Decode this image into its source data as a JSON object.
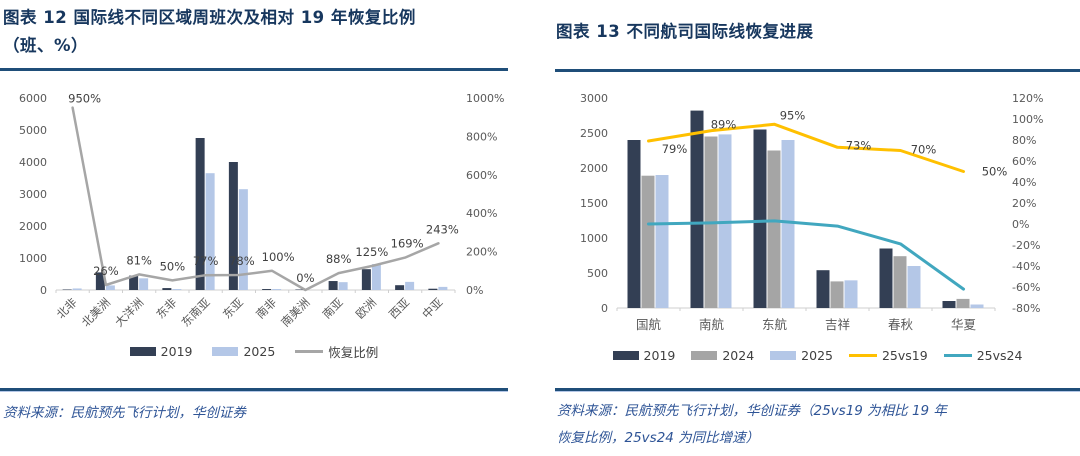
{
  "figure12": {
    "title_line1": "图表 12  国际线不同区域周班次及相对 19 年恢复比例",
    "title_line2": "（班、%）",
    "source": "资料来源：民航预先飞行计划，华创证券"
  },
  "figure13": {
    "title": "图表 13 不同航司国际线恢复进展",
    "source_line1": "资料来源：民航预先飞行计划，华创证券（25vs19 为相比 19 年",
    "source_line2": "恢复比例，25vs24 为同比增速）"
  },
  "colors": {
    "title_navy": "#17375E",
    "rule_navy": "#1F4E79",
    "source_blue": "#2E5496",
    "bar_2019": "#333F54",
    "bar_2024": "#A5A5A5",
    "bar_2025": "#B4C7E7",
    "line_gray": "#A6A6A6",
    "line_yellow": "#FFC000",
    "line_teal": "#41A7BF",
    "axis_text": "#595959",
    "label_text": "#404040"
  },
  "chart_data": [
    {
      "type": "bar",
      "title": "国际线不同区域周班次及相对 19 年恢复比例（班、%）",
      "categories": [
        "北非",
        "北美洲",
        "大洋洲",
        "东非",
        "东南亚",
        "东亚",
        "南非",
        "南美洲",
        "南亚",
        "欧洲",
        "西亚",
        "中亚"
      ],
      "series": [
        {
          "name": "2019",
          "type": "bar",
          "axis": "left",
          "color": "#333F54",
          "values": [
            5,
            550,
            450,
            60,
            4750,
            4000,
            30,
            8,
            280,
            650,
            150,
            40
          ]
        },
        {
          "name": "2025",
          "type": "bar",
          "axis": "left",
          "color": "#B4C7E7",
          "values": [
            48,
            143,
            365,
            30,
            3650,
            3150,
            30,
            0,
            245,
            810,
            254,
            97
          ]
        },
        {
          "name": "恢复比例",
          "type": "line",
          "axis": "right",
          "color": "#A6A6A6",
          "values": [
            950,
            26,
            81,
            50,
            77,
            78,
            100,
            0,
            88,
            125,
            169,
            243
          ],
          "labels": [
            "950%",
            "26%",
            "81%",
            "50%",
            "77%",
            "78%",
            "100%",
            "0%",
            "88%",
            "125%",
            "169%",
            "243%"
          ]
        }
      ],
      "left_axis": {
        "min": 0,
        "max": 6000,
        "step": 1000,
        "ticks": [
          "0",
          "1000",
          "2000",
          "3000",
          "4000",
          "5000",
          "6000"
        ]
      },
      "right_axis": {
        "min": 0,
        "max": 1000,
        "step": 200,
        "ticks": [
          "0%",
          "200%",
          "400%",
          "600%",
          "800%",
          "1000%"
        ]
      },
      "legend": [
        "2019",
        "2025",
        "恢复比例"
      ],
      "legend_position": "bottom",
      "grid": false
    },
    {
      "type": "bar",
      "title": "不同航司国际线恢复进展",
      "categories": [
        "国航",
        "南航",
        "东航",
        "吉祥",
        "春秋",
        "华夏"
      ],
      "series": [
        {
          "name": "2019",
          "type": "bar",
          "axis": "left",
          "color": "#333F54",
          "values": [
            2400,
            2820,
            2550,
            540,
            850,
            100
          ]
        },
        {
          "name": "2024",
          "type": "bar",
          "axis": "left",
          "color": "#A5A5A5",
          "values": [
            1890,
            2450,
            2250,
            380,
            740,
            130
          ]
        },
        {
          "name": "2025",
          "type": "bar",
          "axis": "left",
          "color": "#B4C7E7",
          "values": [
            1900,
            2480,
            2400,
            395,
            600,
            50
          ]
        },
        {
          "name": "25vs19",
          "type": "line",
          "axis": "right",
          "color": "#FFC000",
          "values": [
            79,
            89,
            95,
            73,
            70,
            50
          ],
          "labels": [
            "79%",
            "89%",
            "95%",
            "73%",
            "70%",
            "50%"
          ]
        },
        {
          "name": "25vs24",
          "type": "line",
          "axis": "right",
          "color": "#41A7BF",
          "values": [
            0,
            1,
            3,
            -2,
            -19,
            -62
          ],
          "labels": null
        }
      ],
      "left_axis": {
        "min": 0,
        "max": 3000,
        "step": 500,
        "ticks": [
          "0",
          "500",
          "1000",
          "1500",
          "2000",
          "2500",
          "3000"
        ]
      },
      "right_axis": {
        "min": -80,
        "max": 120,
        "step": 20,
        "ticks": [
          "-80%",
          "-60%",
          "-40%",
          "-20%",
          "0%",
          "20%",
          "40%",
          "60%",
          "80%",
          "100%",
          "120%"
        ]
      },
      "legend": [
        "2019",
        "2024",
        "2025",
        "25vs19",
        "25vs24"
      ],
      "legend_position": "bottom",
      "grid": false
    }
  ]
}
